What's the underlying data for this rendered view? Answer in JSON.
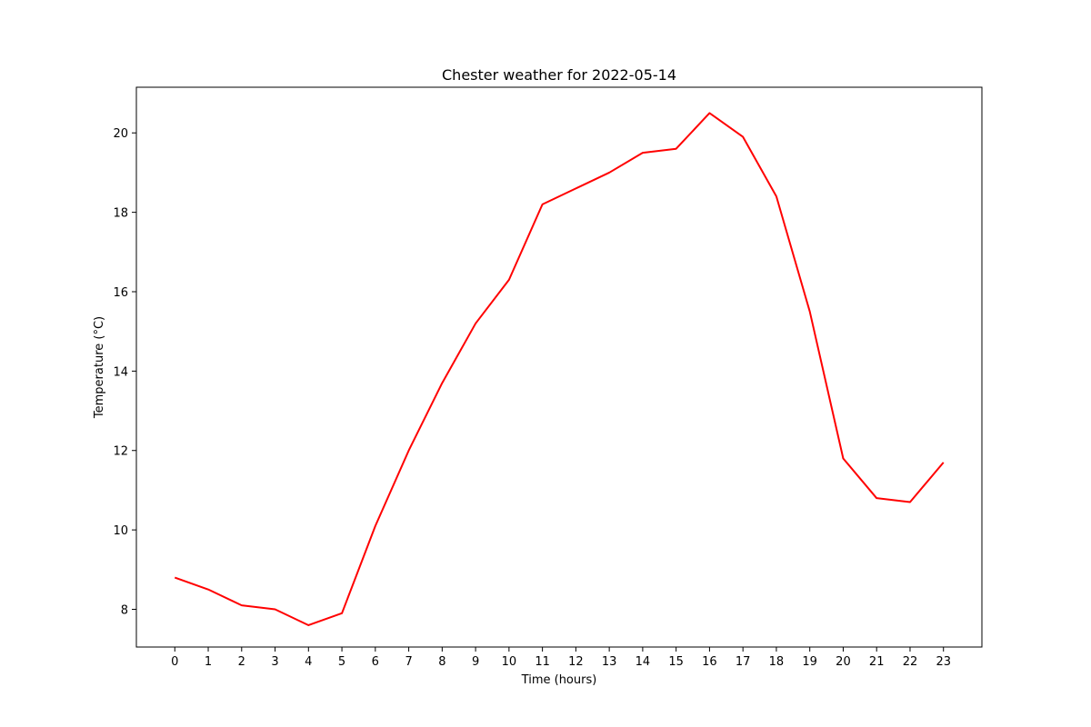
{
  "chart_data": {
    "type": "line",
    "title": "Chester weather for 2022-05-14",
    "xlabel": "Time (hours)",
    "ylabel": "Temperature (°C)",
    "x": [
      0,
      1,
      2,
      3,
      4,
      5,
      6,
      7,
      8,
      9,
      10,
      11,
      12,
      13,
      14,
      15,
      16,
      17,
      18,
      19,
      20,
      21,
      22,
      23
    ],
    "x_ticks": [
      "0",
      "1",
      "2",
      "3",
      "4",
      "5",
      "6",
      "7",
      "8",
      "9",
      "10",
      "11",
      "12",
      "13",
      "14",
      "15",
      "16",
      "17",
      "18",
      "19",
      "20",
      "21",
      "22",
      "23"
    ],
    "y_ticks": [
      "8",
      "10",
      "12",
      "14",
      "16",
      "18",
      "20"
    ],
    "xlim": [
      -1.15,
      24.15
    ],
    "ylim": [
      7.05,
      21.15
    ],
    "grid": false,
    "series": [
      {
        "color": "#ff0000",
        "values": [
          8.8,
          8.5,
          8.1,
          8.0,
          7.6,
          7.9,
          10.1,
          12.0,
          13.7,
          15.2,
          16.3,
          18.2,
          18.6,
          19.0,
          19.5,
          19.6,
          20.5,
          19.9,
          18.4,
          15.5,
          11.8,
          10.8,
          10.7,
          11.7
        ]
      }
    ]
  }
}
